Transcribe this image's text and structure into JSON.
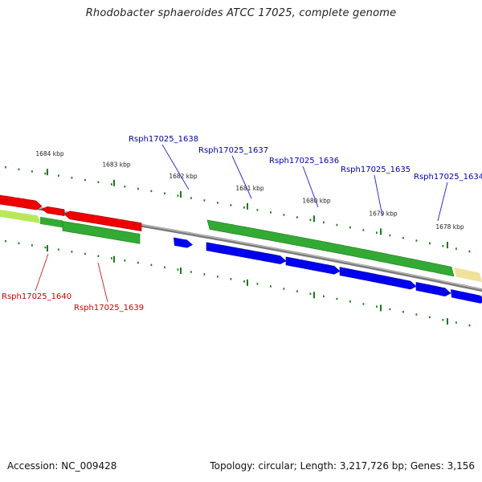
{
  "title": "Rhodobacter sphaeroides ATCC 17025, complete genome",
  "footer": {
    "accession": "Accession: NC_009428",
    "summary": "Topology: circular; Length: 3,217,726 bp; Genes: 3,156"
  },
  "colors": {
    "forward_cds": "#0000ee",
    "forward_label": "#0000aa",
    "reverse_cds": "#ee0000",
    "reverse_label": "#cc0000",
    "gene_green": "#33aa33",
    "tick_green": "#1a7a1a",
    "backbone": "#7a7a7a",
    "other_feature": "#f0e29a"
  },
  "ticks": [
    {
      "label": "1684 kbp"
    },
    {
      "label": "1683 kbp"
    },
    {
      "label": "1682 kbp"
    },
    {
      "label": "1681 kbp"
    },
    {
      "label": "1680 kbp"
    },
    {
      "label": "1679 kbp"
    },
    {
      "label": "1678 kbp"
    }
  ],
  "genes": [
    {
      "label": "Rsph17025_1638",
      "strand": "forward"
    },
    {
      "label": "Rsph17025_1637",
      "strand": "forward"
    },
    {
      "label": "Rsph17025_1636",
      "strand": "forward"
    },
    {
      "label": "Rsph17025_1635",
      "strand": "forward"
    },
    {
      "label": "Rsph17025_1634",
      "strand": "forward"
    },
    {
      "label": "Rsph17025_1640",
      "strand": "reverse"
    },
    {
      "label": "Rsph17025_1639",
      "strand": "reverse"
    }
  ]
}
